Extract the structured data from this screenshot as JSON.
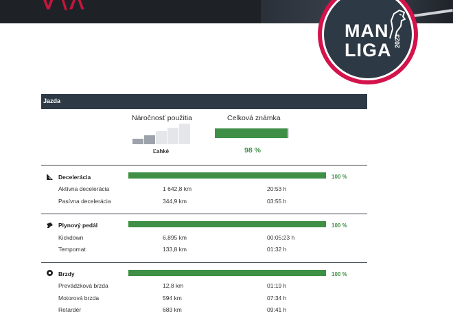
{
  "header": {
    "logo_line1": "MAN",
    "logo_line2": "LIGA",
    "logo_year": "2023"
  },
  "section": {
    "title": "Jazda"
  },
  "summary": {
    "usage_label": "Náročnosť použitia",
    "usage_value": "Ľahké",
    "usage_level": 2,
    "usage_steps": 5,
    "grade_label": "Celková známka",
    "grade_value": "98 %",
    "grade_fraction": 0.98
  },
  "groups": [
    {
      "label": "Decelerácia",
      "icon": "slope-icon",
      "percent": "100 %",
      "fraction": 1.0,
      "rows": [
        {
          "name": "Aktívna decelerácia",
          "distance": "1 642,8 km",
          "time": "20:53 h"
        },
        {
          "name": "Pasívna decelerácia",
          "distance": "344,9 km",
          "time": "03:55 h"
        }
      ]
    },
    {
      "label": "Plynový pedál",
      "icon": "pedal-icon",
      "percent": "100 %",
      "fraction": 1.0,
      "rows": [
        {
          "name": "Kickdown",
          "distance": "6,895 km",
          "time": "00:05:23 h"
        },
        {
          "name": "Tempomat",
          "distance": "133,8 km",
          "time": "01:32 h"
        }
      ]
    },
    {
      "label": "Brzdy",
      "icon": "brake-icon",
      "percent": "100 %",
      "fraction": 1.0,
      "rows": [
        {
          "name": "Prevádzková brzda",
          "distance": "12,8 km",
          "time": "01:19 h"
        },
        {
          "name": "Motorová brzda",
          "distance": "594 km",
          "time": "07:34 h"
        },
        {
          "name": "Retardér",
          "distance": "683 km",
          "time": "09:41 h"
        }
      ]
    }
  ],
  "colors": {
    "accent_green": "#3f8f46",
    "header_dark": "#2d3944",
    "logo_red": "#d3134b"
  }
}
